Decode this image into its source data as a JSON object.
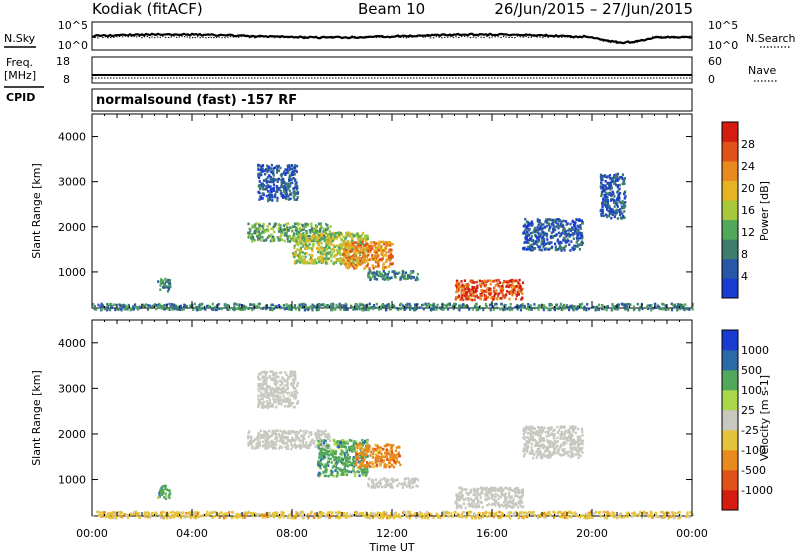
{
  "header": {
    "station": "Kodiak (fitACF)",
    "beam": "Beam 10",
    "date_range": "26/Jun/2015 – 27/Jun/2015",
    "cpid_label": "CPID",
    "cpid_text": "normalsound (fast) -157 RF"
  },
  "time_axis": {
    "label": "Time UT",
    "ticks": [
      "00:00",
      "04:00",
      "08:00",
      "12:00",
      "16:00",
      "20:00",
      "00:00"
    ],
    "range_hours": [
      0,
      24
    ]
  },
  "nsky_panel": {
    "left_label": "N.Sky",
    "right_label": "N.Search",
    "left_ticks": [
      "10^5",
      "10^0"
    ],
    "right_ticks": [
      "10^5",
      "10^0"
    ]
  },
  "freq_panel": {
    "left_label_line1": "Freq.",
    "left_label_line2": "[MHz]",
    "left_ticks": [
      "18",
      "8"
    ],
    "right_label": "Nave",
    "right_ticks": [
      "60",
      "0"
    ]
  },
  "colors": {
    "power": [
      "#1a3cd0",
      "#2a56a8",
      "#3d7d6c",
      "#52a85a",
      "#a8c83c",
      "#e6b422",
      "#e88a1e",
      "#e0521a",
      "#d41c10"
    ],
    "velocity": [
      "#d41c10",
      "#e0521a",
      "#e88a1e",
      "#e6c43a",
      "#c8c8c0",
      "#a8d84a",
      "#52a85a",
      "#2a6aa8",
      "#1a3cd0"
    ]
  },
  "chart_data": [
    {
      "type": "heatmap",
      "panel": "power",
      "ylabel": "Slant Range [km]",
      "yticks": [
        "1000",
        "2000",
        "3000",
        "4000"
      ],
      "ylim": [
        200,
        4500
      ],
      "xlim": [
        0,
        24
      ],
      "colorbar": {
        "label": "Power [dB]",
        "ticks": [
          "4",
          "8",
          "12",
          "16",
          "20",
          "24",
          "28"
        ],
        "range": [
          0,
          32
        ]
      },
      "regions": [
        {
          "x": [
            2.6,
            3.1
          ],
          "y": [
            600,
            900
          ],
          "value": 8
        },
        {
          "x": [
            6.6,
            8.2
          ],
          "y": [
            2600,
            3400
          ],
          "value": 6
        },
        {
          "x": [
            6.2,
            9.5
          ],
          "y": [
            1700,
            2100
          ],
          "value": 14
        },
        {
          "x": [
            8.0,
            11.0
          ],
          "y": [
            1200,
            1900
          ],
          "value": 16
        },
        {
          "x": [
            10.0,
            12.0
          ],
          "y": [
            1100,
            1700
          ],
          "value": 22
        },
        {
          "x": [
            11.0,
            13.0
          ],
          "y": [
            850,
            1050
          ],
          "value": 10
        },
        {
          "x": [
            14.5,
            17.2
          ],
          "y": [
            400,
            850
          ],
          "value": 26
        },
        {
          "x": [
            17.2,
            19.6
          ],
          "y": [
            1500,
            2200
          ],
          "value": 6
        },
        {
          "x": [
            20.3,
            21.3
          ],
          "y": [
            2200,
            3200
          ],
          "value": 6
        },
        {
          "x": [
            0,
            24
          ],
          "y": [
            180,
            320
          ],
          "value": 8
        }
      ]
    },
    {
      "type": "heatmap",
      "panel": "velocity",
      "ylabel": "Slant Range [km]",
      "yticks": [
        "1000",
        "2000",
        "3000",
        "4000"
      ],
      "ylim": [
        200,
        4500
      ],
      "xlim": [
        0,
        24
      ],
      "colorbar": {
        "label": "Velocity [m s-1]",
        "ticks": [
          "1000",
          "500",
          "100",
          "25",
          "-25",
          "-100",
          "-500",
          "-1000"
        ]
      },
      "regions": [
        {
          "x": [
            2.6,
            3.1
          ],
          "y": [
            600,
            900
          ],
          "value": 100
        },
        {
          "x": [
            6.6,
            8.2
          ],
          "y": [
            2600,
            3400
          ],
          "value": 0
        },
        {
          "x": [
            6.2,
            9.5
          ],
          "y": [
            1700,
            2100
          ],
          "value": 0
        },
        {
          "x": [
            9.0,
            11.0
          ],
          "y": [
            1100,
            1900
          ],
          "value": 200
        },
        {
          "x": [
            10.5,
            12.3
          ],
          "y": [
            1300,
            1800
          ],
          "value": -300
        },
        {
          "x": [
            11.0,
            13.0
          ],
          "y": [
            850,
            1050
          ],
          "value": 0
        },
        {
          "x": [
            14.5,
            17.2
          ],
          "y": [
            400,
            850
          ],
          "value": 0
        },
        {
          "x": [
            17.2,
            19.6
          ],
          "y": [
            1500,
            2200
          ],
          "value": 0
        },
        {
          "x": [
            0,
            24
          ],
          "y": [
            180,
            320
          ],
          "value": -50
        }
      ]
    }
  ]
}
